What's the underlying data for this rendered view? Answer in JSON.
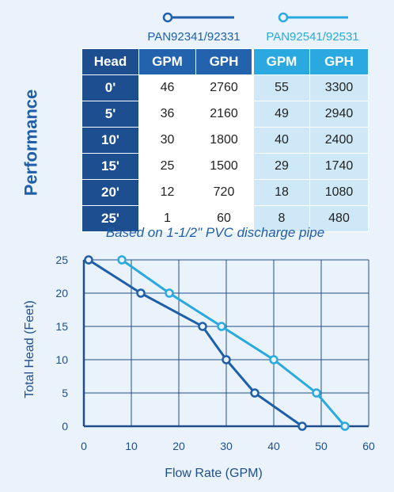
{
  "side_label": "Performance",
  "legend": [
    {
      "label": "PAN92341/92331",
      "color": "#1f5ea8"
    },
    {
      "label": "PAN92541/92531",
      "color": "#2aa9e0"
    }
  ],
  "table": {
    "headers": [
      "Head",
      "GPM",
      "GPH",
      "GPM",
      "GPH"
    ],
    "rows": [
      [
        "0'",
        "46",
        "2760",
        "55",
        "3300"
      ],
      [
        "5'",
        "36",
        "2160",
        "49",
        "2940"
      ],
      [
        "10'",
        "30",
        "1800",
        "40",
        "2400"
      ],
      [
        "15'",
        "25",
        "1500",
        "29",
        "1740"
      ],
      [
        "20'",
        "12",
        "720",
        "18",
        "1080"
      ],
      [
        "25'",
        "1",
        "60",
        "8",
        "480"
      ]
    ]
  },
  "note": "Based on 1-1/2\" PVC discharge pipe",
  "chart_data": {
    "type": "line",
    "title": "",
    "xlabel": "Flow Rate (GPM)",
    "ylabel": "Total Head (Feet)",
    "xlim": [
      0,
      60
    ],
    "ylim": [
      0,
      25
    ],
    "xticks": [
      0,
      10,
      20,
      30,
      40,
      50,
      60
    ],
    "yticks": [
      0,
      5,
      10,
      15,
      20,
      25
    ],
    "grid": true,
    "series": [
      {
        "name": "PAN92341/92331",
        "color": "#1f5ea8",
        "points": [
          [
            46,
            0
          ],
          [
            36,
            5
          ],
          [
            30,
            10
          ],
          [
            25,
            15
          ],
          [
            12,
            20
          ],
          [
            1,
            25
          ]
        ]
      },
      {
        "name": "PAN92541/92531",
        "color": "#2aa9e0",
        "points": [
          [
            55,
            0
          ],
          [
            49,
            5
          ],
          [
            40,
            10
          ],
          [
            29,
            15
          ],
          [
            18,
            20
          ],
          [
            8,
            25
          ]
        ]
      }
    ]
  }
}
